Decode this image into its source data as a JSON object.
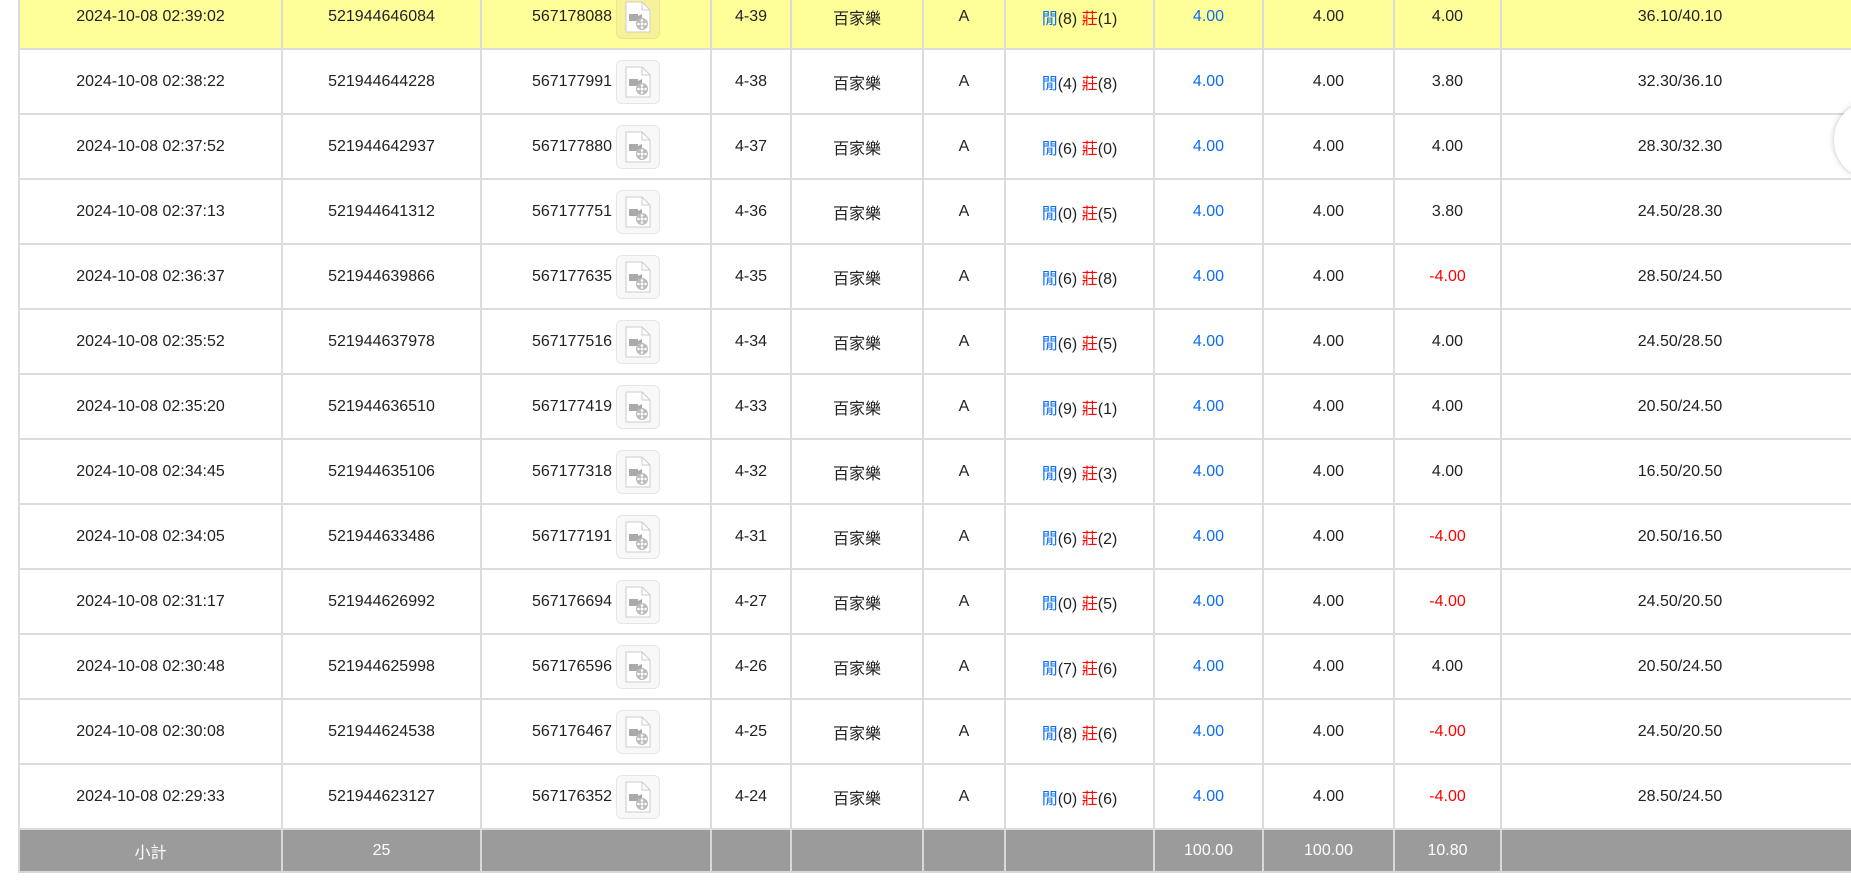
{
  "rows": [
    {
      "time": "2024-10-08 02:39:02",
      "bet_id": "521944646084",
      "round_id": "567178088",
      "shoe": "4-39",
      "game": "百家樂",
      "table": "A",
      "player_label": "閒",
      "player": "(8)",
      "banker_label": "莊",
      "banker": "(1)",
      "bet": "4.00",
      "valid": "4.00",
      "win": "4.00",
      "win_negative": false,
      "balance": "36.10/40.10",
      "highlight": true
    },
    {
      "time": "2024-10-08 02:38:22",
      "bet_id": "521944644228",
      "round_id": "567177991",
      "shoe": "4-38",
      "game": "百家樂",
      "table": "A",
      "player_label": "閒",
      "player": "(4)",
      "banker_label": "莊",
      "banker": "(8)",
      "bet": "4.00",
      "valid": "4.00",
      "win": "3.80",
      "win_negative": false,
      "balance": "32.30/36.10"
    },
    {
      "time": "2024-10-08 02:37:52",
      "bet_id": "521944642937",
      "round_id": "567177880",
      "shoe": "4-37",
      "game": "百家樂",
      "table": "A",
      "player_label": "閒",
      "player": "(6)",
      "banker_label": "莊",
      "banker": "(0)",
      "bet": "4.00",
      "valid": "4.00",
      "win": "4.00",
      "win_negative": false,
      "balance": "28.30/32.30"
    },
    {
      "time": "2024-10-08 02:37:13",
      "bet_id": "521944641312",
      "round_id": "567177751",
      "shoe": "4-36",
      "game": "百家樂",
      "table": "A",
      "player_label": "閒",
      "player": "(0)",
      "banker_label": "莊",
      "banker": "(5)",
      "bet": "4.00",
      "valid": "4.00",
      "win": "3.80",
      "win_negative": false,
      "balance": "24.50/28.30"
    },
    {
      "time": "2024-10-08 02:36:37",
      "bet_id": "521944639866",
      "round_id": "567177635",
      "shoe": "4-35",
      "game": "百家樂",
      "table": "A",
      "player_label": "閒",
      "player": "(6)",
      "banker_label": "莊",
      "banker": "(8)",
      "bet": "4.00",
      "valid": "4.00",
      "win": "-4.00",
      "win_negative": true,
      "balance": "28.50/24.50"
    },
    {
      "time": "2024-10-08 02:35:52",
      "bet_id": "521944637978",
      "round_id": "567177516",
      "shoe": "4-34",
      "game": "百家樂",
      "table": "A",
      "player_label": "閒",
      "player": "(6)",
      "banker_label": "莊",
      "banker": "(5)",
      "bet": "4.00",
      "valid": "4.00",
      "win": "4.00",
      "win_negative": false,
      "balance": "24.50/28.50"
    },
    {
      "time": "2024-10-08 02:35:20",
      "bet_id": "521944636510",
      "round_id": "567177419",
      "shoe": "4-33",
      "game": "百家樂",
      "table": "A",
      "player_label": "閒",
      "player": "(9)",
      "banker_label": "莊",
      "banker": "(1)",
      "bet": "4.00",
      "valid": "4.00",
      "win": "4.00",
      "win_negative": false,
      "balance": "20.50/24.50"
    },
    {
      "time": "2024-10-08 02:34:45",
      "bet_id": "521944635106",
      "round_id": "567177318",
      "shoe": "4-32",
      "game": "百家樂",
      "table": "A",
      "player_label": "閒",
      "player": "(9)",
      "banker_label": "莊",
      "banker": "(3)",
      "bet": "4.00",
      "valid": "4.00",
      "win": "4.00",
      "win_negative": false,
      "balance": "16.50/20.50"
    },
    {
      "time": "2024-10-08 02:34:05",
      "bet_id": "521944633486",
      "round_id": "567177191",
      "shoe": "4-31",
      "game": "百家樂",
      "table": "A",
      "player_label": "閒",
      "player": "(6)",
      "banker_label": "莊",
      "banker": "(2)",
      "bet": "4.00",
      "valid": "4.00",
      "win": "-4.00",
      "win_negative": true,
      "balance": "20.50/16.50"
    },
    {
      "time": "2024-10-08 02:31:17",
      "bet_id": "521944626992",
      "round_id": "567176694",
      "shoe": "4-27",
      "game": "百家樂",
      "table": "A",
      "player_label": "閒",
      "player": "(0)",
      "banker_label": "莊",
      "banker": "(5)",
      "bet": "4.00",
      "valid": "4.00",
      "win": "-4.00",
      "win_negative": true,
      "balance": "24.50/20.50"
    },
    {
      "time": "2024-10-08 02:30:48",
      "bet_id": "521944625998",
      "round_id": "567176596",
      "shoe": "4-26",
      "game": "百家樂",
      "table": "A",
      "player_label": "閒",
      "player": "(7)",
      "banker_label": "莊",
      "banker": "(6)",
      "bet": "4.00",
      "valid": "4.00",
      "win": "4.00",
      "win_negative": false,
      "balance": "20.50/24.50"
    },
    {
      "time": "2024-10-08 02:30:08",
      "bet_id": "521944624538",
      "round_id": "567176467",
      "shoe": "4-25",
      "game": "百家樂",
      "table": "A",
      "player_label": "閒",
      "player": "(8)",
      "banker_label": "莊",
      "banker": "(6)",
      "bet": "4.00",
      "valid": "4.00",
      "win": "-4.00",
      "win_negative": true,
      "balance": "24.50/20.50"
    },
    {
      "time": "2024-10-08 02:29:33",
      "bet_id": "521944623127",
      "round_id": "567176352",
      "shoe": "4-24",
      "game": "百家樂",
      "table": "A",
      "player_label": "閒",
      "player": "(0)",
      "banker_label": "莊",
      "banker": "(6)",
      "bet": "4.00",
      "valid": "4.00",
      "win": "-4.00",
      "win_negative": true,
      "balance": "28.50/24.50"
    }
  ],
  "subtotal": {
    "label": "小計",
    "count": "25",
    "bet": "100.00",
    "valid": "100.00",
    "win": "10.80"
  },
  "colors": {
    "highlight": "#ffff99",
    "player": "#0a6cf5",
    "banker": "#ff0000",
    "subtotal_bg": "#9b9b9b"
  },
  "icons": {
    "video": "video-file-icon"
  }
}
